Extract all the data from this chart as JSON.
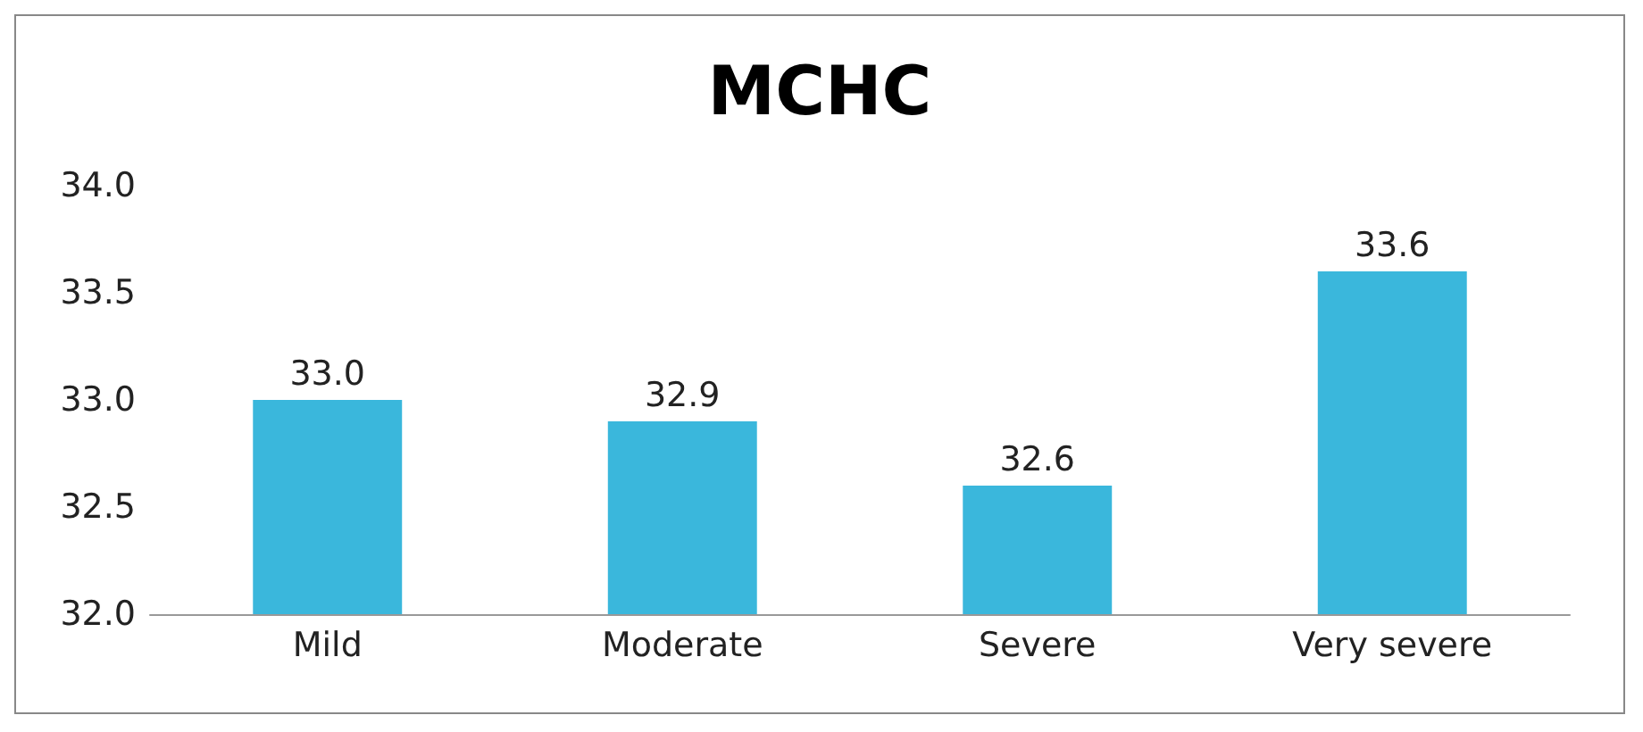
{
  "chart_data": {
    "type": "bar",
    "title": "MCHC",
    "categories": [
      "Mild",
      "Moderate",
      "Severe",
      "Very severe"
    ],
    "values": [
      33.0,
      32.9,
      32.6,
      33.6
    ],
    "value_labels": [
      "33.0",
      "32.9",
      "32.6",
      "33.6"
    ],
    "color": "#3ab7dc",
    "ylim": [
      32,
      34
    ],
    "yticks": [
      {
        "value": 32,
        "label": "32.0"
      },
      {
        "value": 32.5,
        "label": "32.5"
      },
      {
        "value": 33,
        "label": "33.0"
      },
      {
        "value": 33.5,
        "label": "33.5"
      },
      {
        "value": 34,
        "label": "34.0"
      }
    ],
    "grid": false
  }
}
